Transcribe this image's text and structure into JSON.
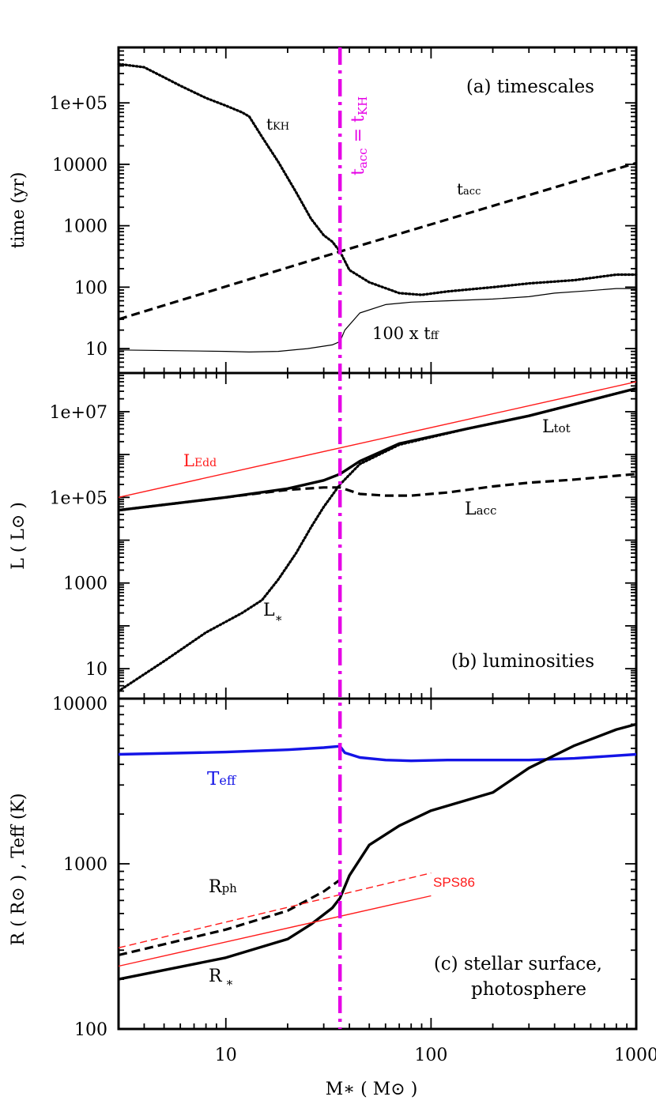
{
  "colors": {
    "axis": "#000000",
    "magenta": "#e600e6",
    "red": "#ff1a1a",
    "blue": "#1414e6"
  },
  "chart_data": [
    {
      "type": "line",
      "panel": "a",
      "label": "(a) timescales",
      "ylabel": "time (yr)",
      "yscale": "log",
      "xscale": "log",
      "xlim": [
        3,
        1000
      ],
      "ylim": [
        4,
        800000
      ],
      "ytick_labels": [
        "10",
        "100",
        "1000",
        "10000",
        "1e+05"
      ],
      "ytick_values": [
        10,
        100,
        1000,
        10000,
        100000
      ],
      "vline": {
        "x": 36,
        "label": "tacc = tKH"
      },
      "series": [
        {
          "name": "tKH",
          "style": "dotted",
          "points": [
            [
              3,
              430000
            ],
            [
              4,
              380000
            ],
            [
              5,
              260000
            ],
            [
              6,
              190000
            ],
            [
              8,
              120000
            ],
            [
              10,
              90000
            ],
            [
              12,
              70000
            ],
            [
              13,
              60000
            ],
            [
              15,
              28000
            ],
            [
              18,
              11000
            ],
            [
              22,
              3500
            ],
            [
              26,
              1300
            ],
            [
              30,
              700
            ],
            [
              33,
              550
            ],
            [
              36,
              380
            ],
            [
              40,
              190
            ],
            [
              50,
              120
            ],
            [
              70,
              80
            ],
            [
              90,
              75
            ],
            [
              120,
              85
            ],
            [
              200,
              100
            ],
            [
              300,
              115
            ],
            [
              500,
              130
            ],
            [
              800,
              160
            ],
            [
              1000,
              160
            ]
          ]
        },
        {
          "name": "tacc",
          "style": "dashed",
          "points": [
            [
              3,
              30
            ],
            [
              36,
              380
            ],
            [
              1000,
              10500
            ]
          ]
        },
        {
          "name": "100 x tff",
          "style": "solid-thin",
          "points": [
            [
              3,
              9.5
            ],
            [
              10,
              9
            ],
            [
              13,
              8.8
            ],
            [
              18,
              9
            ],
            [
              25,
              10
            ],
            [
              33,
              11.5
            ],
            [
              36,
              13
            ],
            [
              38,
              20
            ],
            [
              45,
              38
            ],
            [
              60,
              52
            ],
            [
              80,
              57
            ],
            [
              120,
              60
            ],
            [
              200,
              64
            ],
            [
              300,
              70
            ],
            [
              400,
              80
            ],
            [
              600,
              88
            ],
            [
              800,
              95
            ],
            [
              1000,
              95
            ]
          ]
        }
      ]
    },
    {
      "type": "line",
      "panel": "b",
      "label": "(b) luminosities",
      "ylabel": "L ( L⊙ )",
      "yscale": "log",
      "xscale": "log",
      "xlim": [
        3,
        1000
      ],
      "ylim": [
        2,
        80000000
      ],
      "ytick_labels": [
        "10",
        "1000",
        "1e+05",
        "1e+07"
      ],
      "ytick_values": [
        10,
        1000,
        100000,
        10000000
      ],
      "series": [
        {
          "name": "LEdd",
          "style": "solid-thin-red",
          "points": [
            [
              3,
              100000
            ],
            [
              1000,
              50000000
            ]
          ]
        },
        {
          "name": "Ltot",
          "style": "solid-thick",
          "points": [
            [
              3,
              50000
            ],
            [
              10,
              100000
            ],
            [
              20,
              160000
            ],
            [
              30,
              250000
            ],
            [
              36,
              350000
            ],
            [
              45,
              700000
            ],
            [
              70,
              1800000
            ],
            [
              150,
              4000000
            ],
            [
              300,
              8000000
            ],
            [
              1000,
              35000000
            ]
          ]
        },
        {
          "name": "Lacc",
          "style": "dashed",
          "points": [
            [
              3,
              50000
            ],
            [
              10,
              100000
            ],
            [
              20,
              150000
            ],
            [
              30,
              170000
            ],
            [
              36,
              170000
            ],
            [
              45,
              120000
            ],
            [
              60,
              110000
            ],
            [
              80,
              110000
            ],
            [
              120,
              130000
            ],
            [
              200,
              180000
            ],
            [
              300,
              220000
            ],
            [
              500,
              260000
            ],
            [
              800,
              320000
            ],
            [
              1000,
              350000
            ]
          ]
        },
        {
          "name": "L*",
          "style": "dotted",
          "points": [
            [
              3,
              3
            ],
            [
              5,
              15
            ],
            [
              8,
              70
            ],
            [
              12,
              200
            ],
            [
              15,
              400
            ],
            [
              18,
              1200
            ],
            [
              22,
              5000
            ],
            [
              26,
              20000
            ],
            [
              30,
              60000
            ],
            [
              36,
              200000
            ],
            [
              45,
              600000
            ],
            [
              70,
              1700000
            ],
            [
              150,
              4000000
            ],
            [
              300,
              8000000
            ],
            [
              1000,
              35000000
            ]
          ]
        }
      ]
    },
    {
      "type": "line",
      "panel": "c",
      "label": "(c) stellar surface,",
      "label2": "photosphere",
      "ylabel": "R ( R⊙ ) ,  Teff (K)",
      "yscale": "log",
      "xscale": "log",
      "xlim": [
        3,
        1000
      ],
      "ylim": [
        100,
        10000
      ],
      "ytick_labels": [
        "100",
        "1000",
        "10000"
      ],
      "ytick_values": [
        100,
        1000,
        10000
      ],
      "xtick_labels": [
        "10",
        "100",
        "1000"
      ],
      "xtick_values": [
        10,
        100,
        1000
      ],
      "xlabel": "M∗ ( M⊙ )",
      "series": [
        {
          "name": "Teff",
          "style": "solid-thick-blue",
          "points": [
            [
              3,
              4600
            ],
            [
              10,
              4750
            ],
            [
              20,
              4900
            ],
            [
              30,
              5050
            ],
            [
              36,
              5150
            ],
            [
              38,
              4700
            ],
            [
              45,
              4400
            ],
            [
              60,
              4250
            ],
            [
              80,
              4200
            ],
            [
              120,
              4250
            ],
            [
              200,
              4250
            ],
            [
              300,
              4250
            ],
            [
              500,
              4350
            ],
            [
              1000,
              4600
            ]
          ]
        },
        {
          "name": "Rph",
          "style": "dashed",
          "points": [
            [
              3,
              280
            ],
            [
              10,
              400
            ],
            [
              20,
              520
            ],
            [
              30,
              680
            ],
            [
              36,
              800
            ]
          ]
        },
        {
          "name": "R*",
          "style": "solid-thick",
          "points": [
            [
              3,
              200
            ],
            [
              10,
              270
            ],
            [
              20,
              350
            ],
            [
              26,
              430
            ],
            [
              33,
              540
            ],
            [
              36,
              620
            ],
            [
              40,
              850
            ],
            [
              50,
              1300
            ],
            [
              70,
              1700
            ],
            [
              100,
              2100
            ],
            [
              200,
              2700
            ],
            [
              300,
              3800
            ],
            [
              500,
              5200
            ],
            [
              800,
              6500
            ],
            [
              1000,
              7000
            ]
          ]
        },
        {
          "name": "SPS86 Rph",
          "style": "dashed-thin-red",
          "points": [
            [
              3,
              310
            ],
            [
              100,
              880
            ]
          ]
        },
        {
          "name": "SPS86 R*",
          "style": "solid-thin-red",
          "points": [
            [
              3,
              240
            ],
            [
              100,
              640
            ]
          ]
        }
      ]
    }
  ]
}
